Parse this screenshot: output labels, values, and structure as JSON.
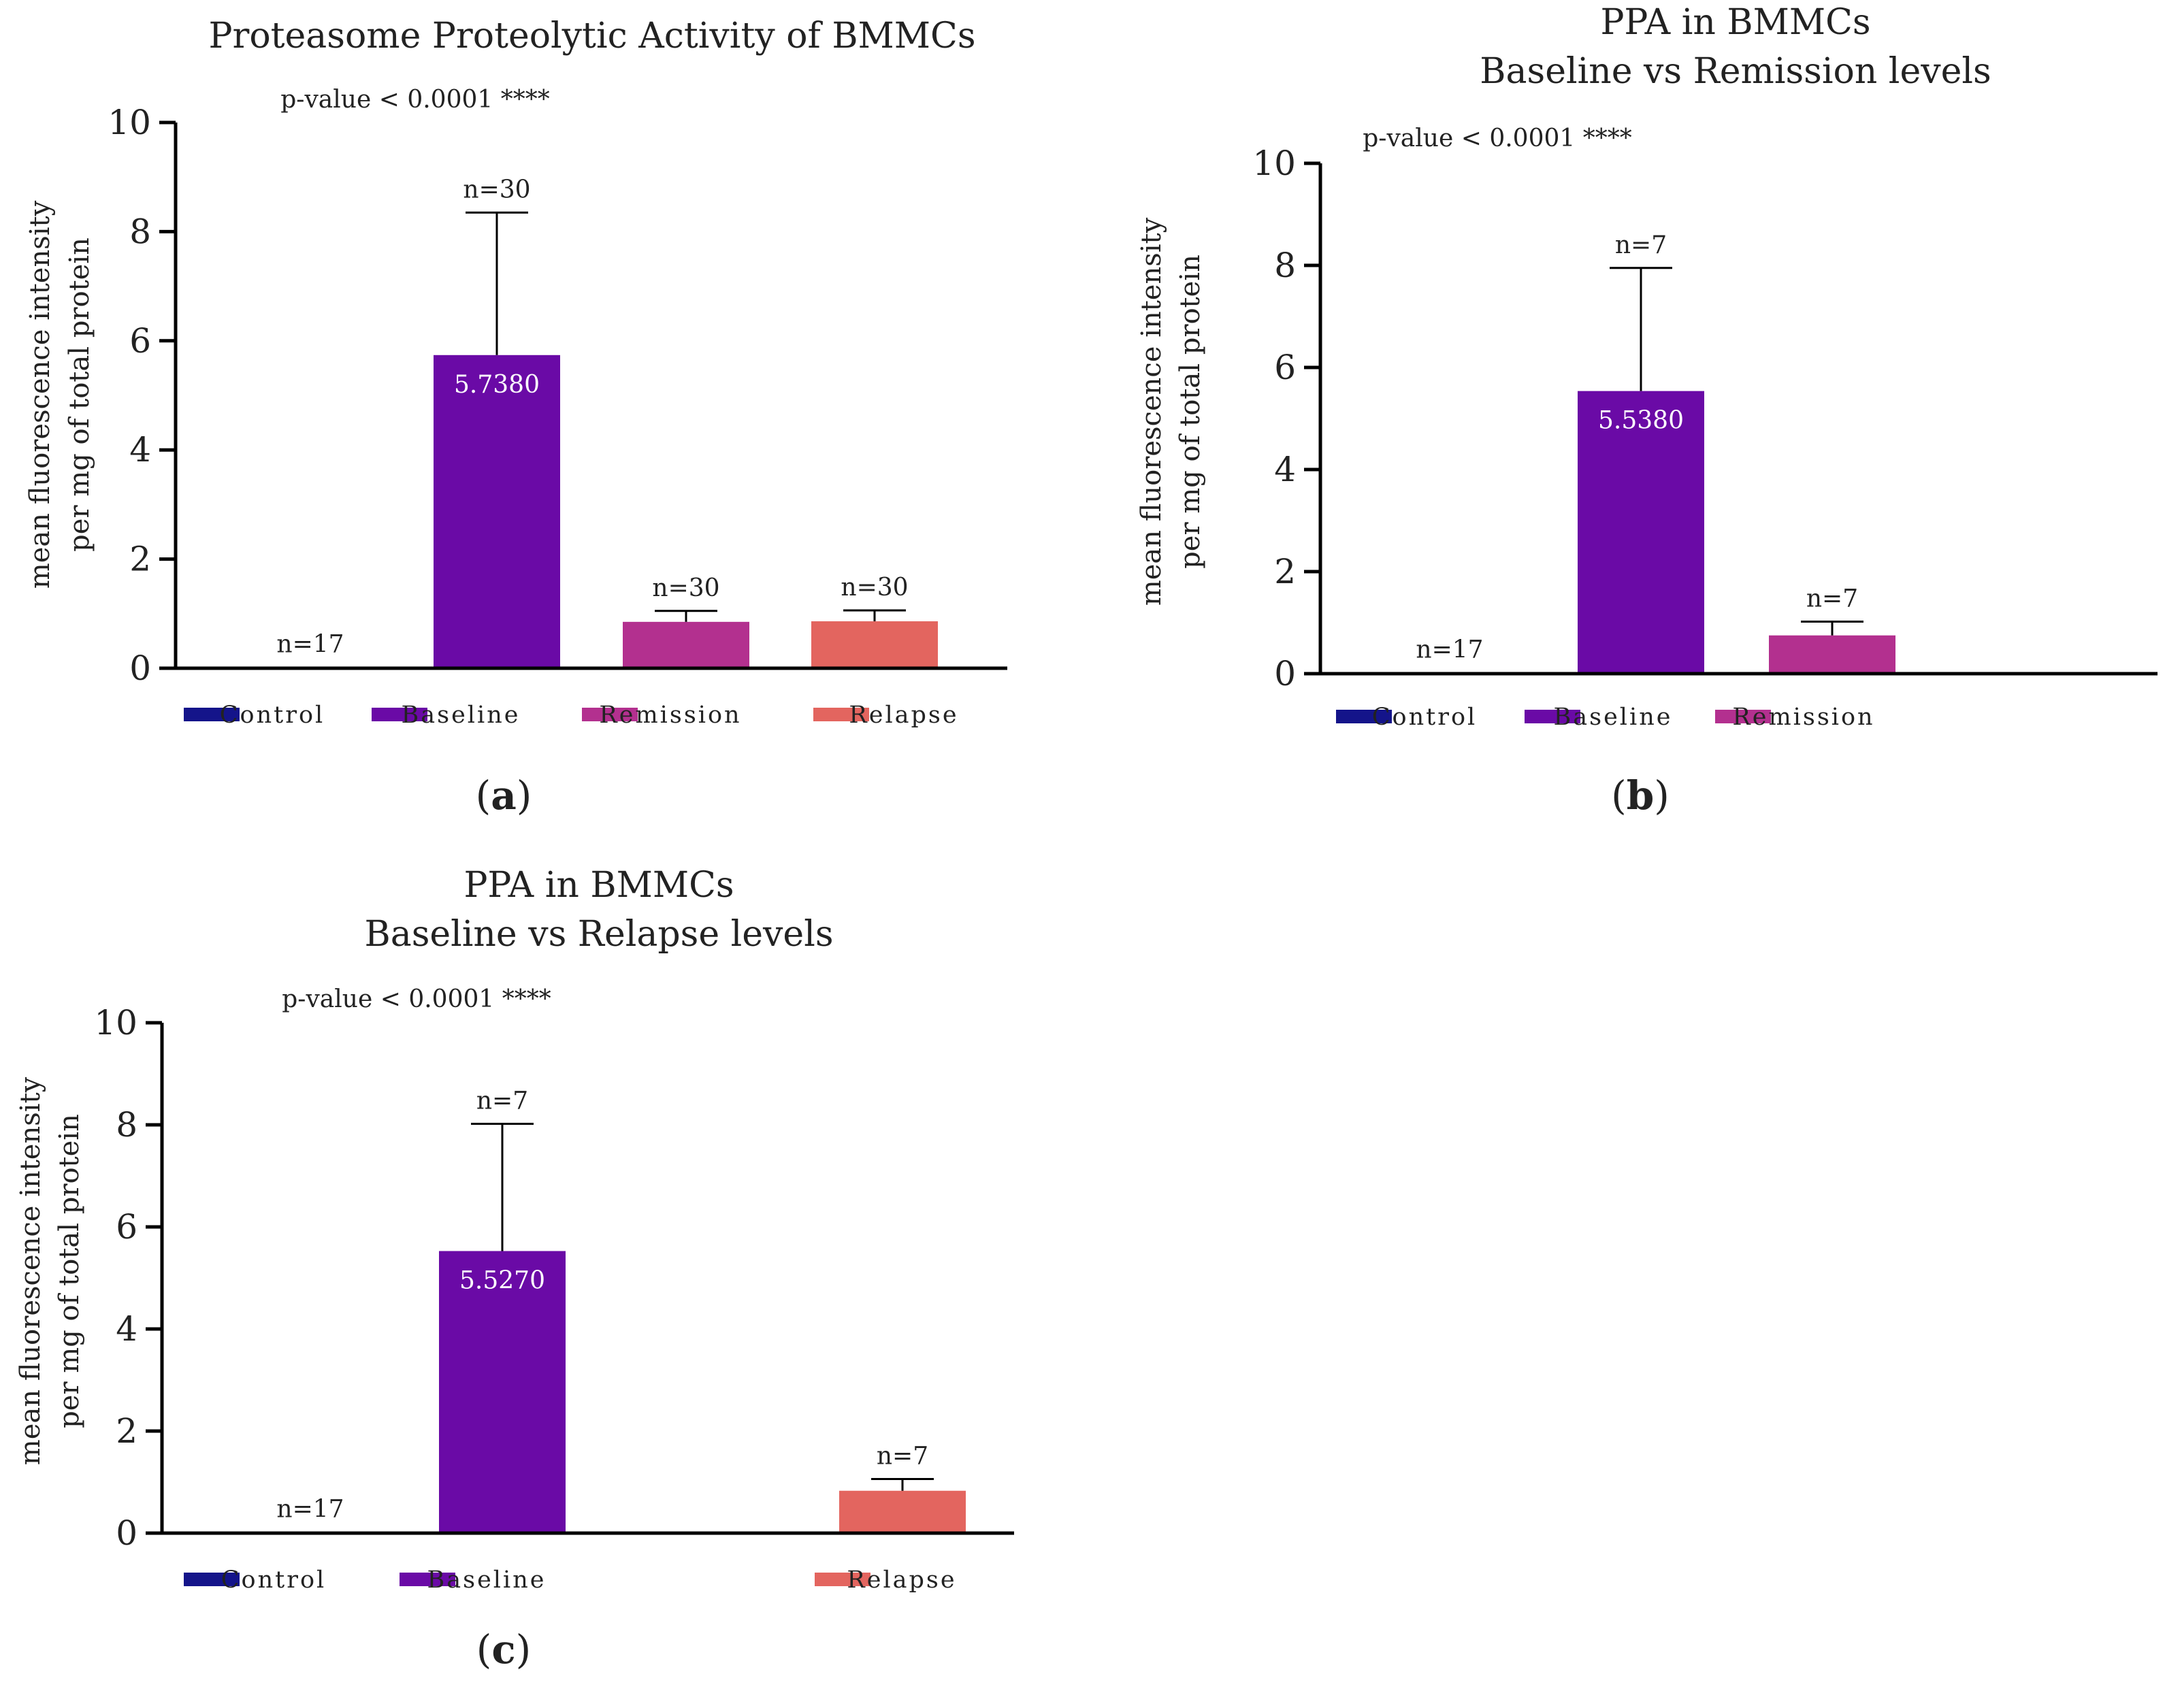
{
  "colors": {
    "Control": "#14148a",
    "Baseline": "#6a0aa6",
    "Remission": "#b3308f",
    "Relapse": "#e3655f",
    "axis": "#000000",
    "text": "#222222",
    "bar_label": "#ffffff"
  },
  "chart_data": [
    {
      "id": "a",
      "panel_label": "a",
      "type": "bar",
      "title": [
        "Proteasome Proteolytic Activity of BMMCs"
      ],
      "ylabel": [
        "mean fluorescence intensity",
        "per mg of total protein"
      ],
      "xlabel": "",
      "ylim": [
        0,
        10
      ],
      "yticks": [
        "0",
        "2",
        "4",
        "6",
        "8",
        "10"
      ],
      "pvalue": "p-value < 0.0001 ****",
      "categories": [
        "Control",
        "Baseline",
        "Remission",
        "Relapse"
      ],
      "values": [
        0.02,
        5.738,
        0.85,
        0.86
      ],
      "error_upper": [
        0.02,
        8.35,
        1.05,
        1.06
      ],
      "n_labels": [
        "n=17",
        "n=30",
        "n=30",
        "n=30"
      ],
      "value_labels": [
        "",
        "5.7380",
        "",
        ""
      ],
      "legend": [
        "Control",
        "Baseline",
        "Remission",
        "Relapse"
      ]
    },
    {
      "id": "b",
      "panel_label": "b",
      "type": "bar",
      "title": [
        "PPA in BMMCs",
        "Baseline vs Remission levels"
      ],
      "ylabel": [
        "mean fluorescence intensity",
        "per mg of total protein"
      ],
      "xlabel": "",
      "ylim": [
        0,
        10
      ],
      "yticks": [
        "0",
        "2",
        "4",
        "6",
        "8",
        "10"
      ],
      "pvalue": "p-value < 0.0001 ****",
      "categories": [
        "Control",
        "Baseline",
        "Remission"
      ],
      "values": [
        0.02,
        5.538,
        0.75
      ],
      "error_upper": [
        0.02,
        7.95,
        1.02
      ],
      "n_labels": [
        "n=17",
        "n=7",
        "n=7"
      ],
      "value_labels": [
        "",
        "5.5380",
        ""
      ],
      "legend": [
        "Control",
        "Baseline",
        "Remission"
      ]
    },
    {
      "id": "c",
      "panel_label": "c",
      "type": "bar",
      "title": [
        "PPA in BMMCs",
        "Baseline vs Relapse levels"
      ],
      "ylabel": [
        "mean fluorescence intensity",
        "per mg of total protein"
      ],
      "xlabel": "",
      "ylim": [
        0,
        10
      ],
      "yticks": [
        "0",
        "2",
        "4",
        "6",
        "8",
        "10"
      ],
      "pvalue": "p-value < 0.0001 ****",
      "categories": [
        "Control",
        "Baseline",
        "Relapse"
      ],
      "values": [
        0.02,
        5.527,
        0.83
      ],
      "error_upper": [
        0.02,
        8.02,
        1.06
      ],
      "n_labels": [
        "n=17",
        "n=7",
        "n=7"
      ],
      "value_labels": [
        "",
        "5.5270",
        ""
      ],
      "legend": [
        "Control",
        "Baseline",
        "Relapse"
      ]
    }
  ]
}
